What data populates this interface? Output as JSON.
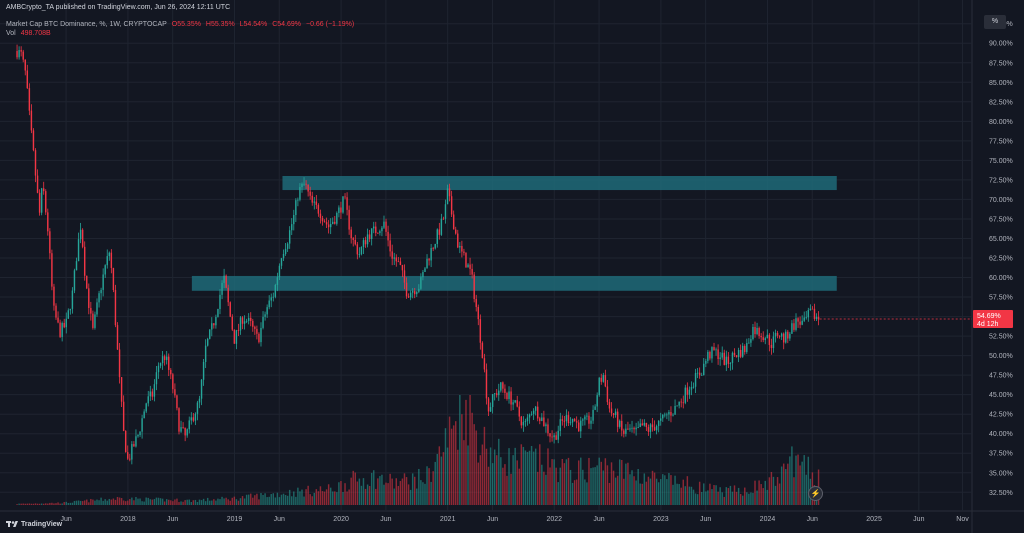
{
  "header": {
    "published": "AMBCrypto_TA published on TradingView.com, Jun 26, 2024 12:11 UTC",
    "symbol": "Market Cap BTC Dominance, %, 1W, CRYPTOCAP",
    "open": "O55.35%",
    "high": "H55.35%",
    "low": "L54.54%",
    "close": "C54.69%",
    "change": "−0.66 (−1.19%)",
    "vol_label": "Vol",
    "vol_value": "498.708B"
  },
  "scale_button": "%",
  "brand": "TradingView",
  "price_badges": {
    "last": "54.69%",
    "countdown": "4d 12h"
  },
  "colors": {
    "background": "#131722",
    "up": "#26a69a",
    "down": "#f23645",
    "zone": "#1e6a78",
    "grid": "#1f2430"
  },
  "chart_data": {
    "type": "candlestick",
    "title": "Market Cap BTC Dominance, %, 1W, CRYPTOCAP",
    "y_ticks": [
      "92.50%",
      "90.00%",
      "87.50%",
      "85.00%",
      "82.50%",
      "80.00%",
      "77.50%",
      "75.00%",
      "72.50%",
      "70.00%",
      "67.50%",
      "65.00%",
      "62.50%",
      "60.00%",
      "57.50%",
      "55.00%",
      "52.50%",
      "50.00%",
      "47.50%",
      "45.00%",
      "42.50%",
      "40.00%",
      "37.50%",
      "35.00%",
      "32.50%"
    ],
    "x_ticks": [
      "Jun",
      "2018",
      "Jun",
      "2019",
      "Jun",
      "2020",
      "Jun",
      "2021",
      "Jun",
      "2022",
      "Jun",
      "2023",
      "Jun",
      "2024",
      "Jun",
      "2025",
      "Jun",
      "Nov"
    ],
    "ylim": [
      31,
      94
    ],
    "zones": [
      {
        "name": "upper-resistance-zone",
        "from_year": 2019.45,
        "to_year": 2024.65,
        "low": 71.2,
        "high": 73.0
      },
      {
        "name": "lower-resistance-zone",
        "from_year": 2018.6,
        "to_year": 2024.65,
        "low": 58.3,
        "high": 60.2
      }
    ],
    "path_points": [
      [
        2016.96,
        89.0
      ],
      [
        2017.0,
        88.5
      ],
      [
        2017.04,
        86.0
      ],
      [
        2017.08,
        80.0
      ],
      [
        2017.12,
        75.0
      ],
      [
        2017.17,
        68.0
      ],
      [
        2017.2,
        72.0
      ],
      [
        2017.25,
        66.0
      ],
      [
        2017.3,
        56.0
      ],
      [
        2017.36,
        53.0
      ],
      [
        2017.42,
        54.0
      ],
      [
        2017.48,
        58.0
      ],
      [
        2017.52,
        63.0
      ],
      [
        2017.56,
        67.0
      ],
      [
        2017.6,
        60.0
      ],
      [
        2017.67,
        53.0
      ],
      [
        2017.72,
        57.0
      ],
      [
        2017.78,
        61.0
      ],
      [
        2017.83,
        63.5
      ],
      [
        2017.87,
        57.0
      ],
      [
        2017.92,
        47.0
      ],
      [
        2017.96,
        40.0
      ],
      [
        2018.0,
        36.5
      ],
      [
        2018.04,
        38.0
      ],
      [
        2018.1,
        40.0
      ],
      [
        2018.17,
        44.0
      ],
      [
        2018.23,
        45.0
      ],
      [
        2018.29,
        49.0
      ],
      [
        2018.35,
        50.0
      ],
      [
        2018.42,
        46.0
      ],
      [
        2018.48,
        41.0
      ],
      [
        2018.54,
        39.5
      ],
      [
        2018.6,
        42.0
      ],
      [
        2018.67,
        44.0
      ],
      [
        2018.73,
        51.0
      ],
      [
        2018.8,
        54.0
      ],
      [
        2018.85,
        57.0
      ],
      [
        2018.9,
        60.0
      ],
      [
        2018.96,
        55.0
      ],
      [
        2019.0,
        52.0
      ],
      [
        2019.08,
        55.0
      ],
      [
        2019.15,
        54.0
      ],
      [
        2019.22,
        52.0
      ],
      [
        2019.3,
        56.0
      ],
      [
        2019.37,
        58.0
      ],
      [
        2019.44,
        63.0
      ],
      [
        2019.5,
        65.0
      ],
      [
        2019.56,
        68.0
      ],
      [
        2019.6,
        71.0
      ],
      [
        2019.66,
        72.0
      ],
      [
        2019.72,
        69.5
      ],
      [
        2019.8,
        68.5
      ],
      [
        2019.88,
        66.5
      ],
      [
        2019.96,
        68.0
      ],
      [
        2020.03,
        70.0
      ],
      [
        2020.1,
        65.0
      ],
      [
        2020.17,
        63.0
      ],
      [
        2020.25,
        65.5
      ],
      [
        2020.32,
        66.0
      ],
      [
        2020.4,
        67.0
      ],
      [
        2020.47,
        63.0
      ],
      [
        2020.55,
        61.5
      ],
      [
        2020.62,
        58.0
      ],
      [
        2020.68,
        58.5
      ],
      [
        2020.74,
        59.0
      ],
      [
        2020.8,
        62.0
      ],
      [
        2020.86,
        64.0
      ],
      [
        2020.92,
        66.0
      ],
      [
        2020.97,
        68.0
      ],
      [
        2021.0,
        71.0
      ],
      [
        2021.04,
        68.0
      ],
      [
        2021.1,
        64.0
      ],
      [
        2021.17,
        62.0
      ],
      [
        2021.22,
        60.5
      ],
      [
        2021.27,
        56.0
      ],
      [
        2021.33,
        50.0
      ],
      [
        2021.38,
        43.0
      ],
      [
        2021.44,
        45.0
      ],
      [
        2021.5,
        46.0
      ],
      [
        2021.56,
        45.0
      ],
      [
        2021.62,
        44.0
      ],
      [
        2021.68,
        42.0
      ],
      [
        2021.72,
        41.0
      ],
      [
        2021.76,
        42.0
      ],
      [
        2021.8,
        43.5
      ],
      [
        2021.86,
        42.5
      ],
      [
        2021.92,
        41.0
      ],
      [
        2021.96,
        40.0
      ],
      [
        2022.0,
        39.5
      ],
      [
        2022.05,
        41.0
      ],
      [
        2022.1,
        42.0
      ],
      [
        2022.17,
        42.0
      ],
      [
        2022.23,
        41.0
      ],
      [
        2022.3,
        41.5
      ],
      [
        2022.36,
        42.0
      ],
      [
        2022.42,
        46.5
      ],
      [
        2022.46,
        47.5
      ],
      [
        2022.52,
        43.0
      ],
      [
        2022.58,
        42.0
      ],
      [
        2022.64,
        40.0
      ],
      [
        2022.7,
        40.5
      ],
      [
        2022.76,
        40.0
      ],
      [
        2022.82,
        41.0
      ],
      [
        2022.88,
        40.5
      ],
      [
        2022.94,
        41.0
      ],
      [
        2023.0,
        41.5
      ],
      [
        2023.06,
        42.5
      ],
      [
        2023.12,
        43.0
      ],
      [
        2023.2,
        44.5
      ],
      [
        2023.26,
        46.0
      ],
      [
        2023.32,
        47.0
      ],
      [
        2023.38,
        48.0
      ],
      [
        2023.44,
        50.0
      ],
      [
        2023.5,
        50.5
      ],
      [
        2023.56,
        50.0
      ],
      [
        2023.62,
        49.0
      ],
      [
        2023.68,
        50.0
      ],
      [
        2023.74,
        50.5
      ],
      [
        2023.8,
        51.0
      ],
      [
        2023.86,
        53.5
      ],
      [
        2023.92,
        53.0
      ],
      [
        2023.98,
        52.5
      ],
      [
        2024.04,
        51.5
      ],
      [
        2024.1,
        53.0
      ],
      [
        2024.16,
        52.0
      ],
      [
        2024.22,
        53.5
      ],
      [
        2024.28,
        54.5
      ],
      [
        2024.34,
        54.0
      ],
      [
        2024.4,
        55.5
      ],
      [
        2024.45,
        55.0
      ],
      [
        2024.49,
        54.69
      ]
    ],
    "volume_points": [
      [
        2016.96,
        0.01
      ],
      [
        2017.4,
        0.02
      ],
      [
        2017.9,
        0.06
      ],
      [
        2018.2,
        0.05
      ],
      [
        2018.6,
        0.04
      ],
      [
        2019.0,
        0.06
      ],
      [
        2019.3,
        0.09
      ],
      [
        2019.6,
        0.12
      ],
      [
        2019.9,
        0.14
      ],
      [
        2020.1,
        0.22
      ],
      [
        2020.3,
        0.25
      ],
      [
        2020.5,
        0.2
      ],
      [
        2020.8,
        0.25
      ],
      [
        2020.95,
        0.5
      ],
      [
        2021.05,
        0.7
      ],
      [
        2021.15,
        0.95
      ],
      [
        2021.3,
        0.6
      ],
      [
        2021.45,
        0.45
      ],
      [
        2021.6,
        0.4
      ],
      [
        2021.8,
        0.42
      ],
      [
        2022.0,
        0.35
      ],
      [
        2022.2,
        0.3
      ],
      [
        2022.4,
        0.35
      ],
      [
        2022.6,
        0.32
      ],
      [
        2022.8,
        0.28
      ],
      [
        2023.0,
        0.22
      ],
      [
        2023.2,
        0.2
      ],
      [
        2023.4,
        0.15
      ],
      [
        2023.6,
        0.12
      ],
      [
        2023.8,
        0.14
      ],
      [
        2024.0,
        0.2
      ],
      [
        2024.15,
        0.28
      ],
      [
        2024.22,
        0.45
      ],
      [
        2024.3,
        0.35
      ],
      [
        2024.42,
        0.3
      ],
      [
        2024.49,
        0.25
      ]
    ]
  }
}
